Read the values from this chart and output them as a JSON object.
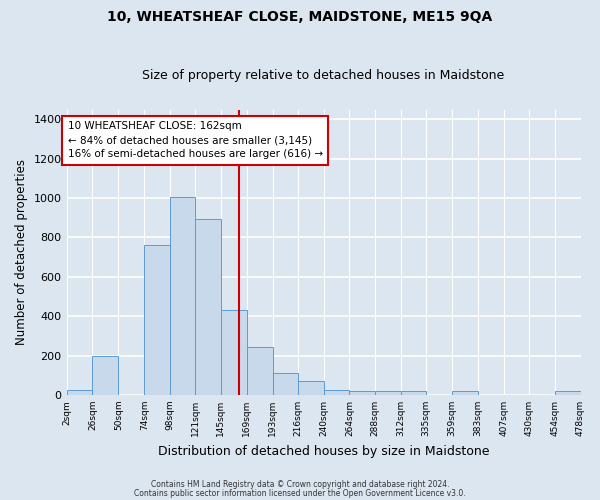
{
  "title": "10, WHEATSHEAF CLOSE, MAIDSTONE, ME15 9QA",
  "subtitle": "Size of property relative to detached houses in Maidstone",
  "xlabel": "Distribution of detached houses by size in Maidstone",
  "ylabel": "Number of detached properties",
  "footer1": "Contains HM Land Registry data © Crown copyright and database right 2024.",
  "footer2": "Contains public sector information licensed under the Open Government Licence v3.0.",
  "bin_edges": [
    2,
    26,
    50,
    74,
    98,
    121,
    145,
    169,
    193,
    216,
    240,
    264,
    288,
    312,
    335,
    359,
    383,
    407,
    430,
    454,
    478
  ],
  "bar_heights": [
    25,
    200,
    0,
    760,
    1005,
    895,
    430,
    245,
    110,
    70,
    25,
    20,
    20,
    20,
    0,
    20,
    0,
    0,
    0,
    20
  ],
  "bar_color": "#c9d9ec",
  "bar_edge_color": "#5b9bd5",
  "vline_x": 162,
  "vline_color": "#cc0000",
  "annotation_title": "10 WHEATSHEAF CLOSE: 162sqm",
  "annotation_line1": "← 84% of detached houses are smaller (3,145)",
  "annotation_line2": "16% of semi-detached houses are larger (616) →",
  "annotation_box_color": "#ffffff",
  "annotation_box_edge": "#cc0000",
  "ylim": [
    0,
    1450
  ],
  "yticks": [
    0,
    200,
    400,
    600,
    800,
    1000,
    1200,
    1400
  ],
  "xtick_labels": [
    "2sqm",
    "26sqm",
    "50sqm",
    "74sqm",
    "98sqm",
    "121sqm",
    "145sqm",
    "169sqm",
    "193sqm",
    "216sqm",
    "240sqm",
    "264sqm",
    "288sqm",
    "312sqm",
    "335sqm",
    "359sqm",
    "383sqm",
    "407sqm",
    "430sqm",
    "454sqm",
    "478sqm"
  ],
  "fig_bg_color": "#dce6f1",
  "plot_bg_color": "#dce6f1",
  "grid_color": "#ffffff",
  "title_fontsize": 10,
  "subtitle_fontsize": 9
}
